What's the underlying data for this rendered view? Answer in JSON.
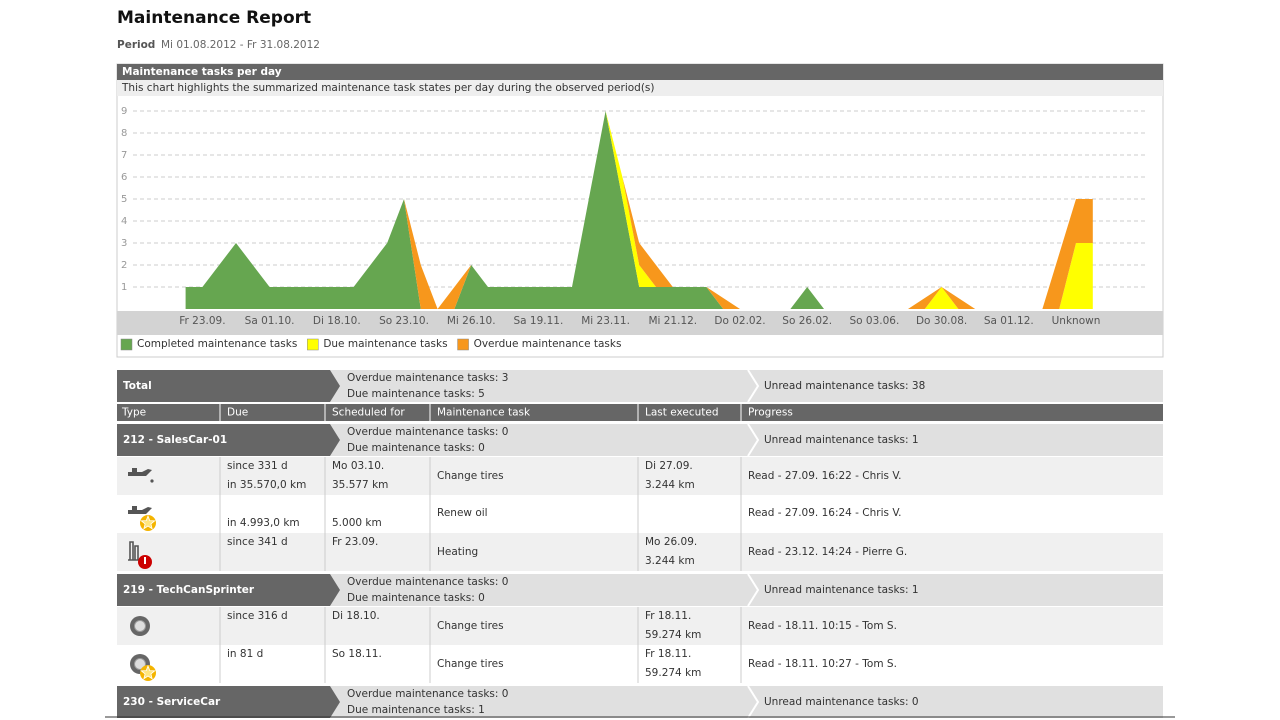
{
  "header": {
    "title": "Maintenance Report",
    "period_label": "Period",
    "period": "Mi 01.08.2012 - Fr 31.08.2012"
  },
  "chart_data": {
    "type": "area",
    "stacked": true,
    "title": "Maintenance tasks per day",
    "subtitle": "This chart highlights the summarized maintenance task states per day during the observed period(s)",
    "categories": [
      null,
      "Fr 23.09.",
      null,
      null,
      null,
      "Sa 01.10.",
      null,
      null,
      null,
      "Di 18.10.",
      null,
      null,
      null,
      "So 23.10.",
      null,
      null,
      null,
      "Mi 26.10.",
      null,
      null,
      null,
      "Sa 19.11.",
      null,
      null,
      null,
      "Mi 23.11.",
      null,
      null,
      null,
      "Mi 21.12.",
      null,
      null,
      null,
      "Do 02.02.",
      null,
      null,
      null,
      "So 26.02.",
      null,
      null,
      null,
      "So 03.06.",
      null,
      null,
      null,
      "Do 30.08.",
      null,
      null,
      null,
      "Sa 01.12.",
      null,
      null,
      null,
      "Unknown",
      null
    ],
    "series": [
      {
        "name": "Completed maintenance tasks",
        "color": "#66a650",
        "values": [
          1,
          1,
          2,
          3,
          2,
          1,
          1,
          1,
          1,
          1,
          1,
          2,
          3,
          5,
          0,
          0,
          0,
          2,
          1,
          1,
          1,
          1,
          1,
          1,
          5,
          9,
          5,
          1,
          1,
          1,
          1,
          1,
          0,
          0,
          0,
          0,
          0,
          1,
          0,
          0,
          0,
          0,
          0,
          0,
          0,
          0,
          0,
          0,
          0,
          0,
          0,
          0,
          0,
          0,
          0
        ]
      },
      {
        "name": "Due maintenance tasks",
        "color": "#ffff00",
        "values": [
          0,
          0,
          0,
          0,
          0,
          0,
          0,
          0,
          0,
          0,
          0,
          0,
          0,
          0,
          0,
          0,
          0,
          0,
          0,
          0,
          0,
          0,
          0,
          0,
          0,
          0,
          1,
          1,
          0,
          0,
          0,
          0,
          0,
          0,
          0,
          0,
          0,
          0,
          0,
          0,
          0,
          0,
          0,
          0,
          0,
          1,
          0,
          0,
          0,
          0,
          0,
          0,
          0,
          3,
          3
        ]
      },
      {
        "name": "Overdue maintenance tasks",
        "color": "#f7971c",
        "values": [
          0,
          0,
          0,
          0,
          0,
          0,
          0,
          0,
          0,
          0,
          0,
          0,
          0,
          0,
          2,
          0,
          1,
          0,
          0,
          0,
          0,
          0,
          0,
          0,
          0,
          0,
          0,
          1,
          1,
          0,
          0,
          0,
          0.5,
          0,
          0,
          0,
          0,
          0,
          0,
          0,
          0,
          0,
          0,
          0,
          0.5,
          0,
          0.5,
          0,
          0,
          0,
          0,
          0,
          2.5,
          2,
          2
        ]
      }
    ],
    "ylim": [
      0,
      9.6
    ],
    "yticks": [
      1,
      2,
      3,
      4,
      5,
      6,
      7,
      8,
      9
    ],
    "grid": true,
    "legend": "bottom"
  },
  "table": {
    "total": {
      "label": "Total",
      "overdue": "Overdue maintenance tasks: 3",
      "due": "Due maintenance tasks: 5",
      "unread": "Unread maintenance tasks: 38"
    },
    "columns": [
      "Type",
      "Due",
      "Scheduled for",
      "Maintenance task",
      "Last executed",
      "Progress"
    ],
    "groups": [
      {
        "label": "212 - SalesCar-01",
        "overdue": "Overdue maintenance tasks: 0",
        "due": "Due maintenance tasks: 0",
        "unread": "Unread maintenance tasks: 1",
        "tasks": [
          {
            "due": [
              "since 331 d",
              "in 35.570,0 km"
            ],
            "scheduled": [
              "Mo 03.10.",
              "35.577 km"
            ],
            "task": "Change tires",
            "last": [
              "Di 27.09.",
              "3.244 km"
            ],
            "progress": "Read - 27.09. 16:22 - Chris V."
          },
          {
            "due": [
              "in 4.993,0 km"
            ],
            "scheduled": [
              "5.000 km"
            ],
            "task": "Renew oil",
            "last": [],
            "progress": "Read - 27.09. 16:24 - Chris V."
          },
          {
            "due": [
              "since 341 d"
            ],
            "scheduled": [
              "Fr 23.09."
            ],
            "task": "Heating",
            "last": [
              "Mo 26.09.",
              "3.244 km"
            ],
            "progress": "Read - 23.12. 14:24 - Pierre G."
          }
        ]
      },
      {
        "label": "219 - TechCanSprinter",
        "overdue": "Overdue maintenance tasks: 0",
        "due": "Due maintenance tasks: 0",
        "unread": "Unread maintenance tasks: 1",
        "tasks": [
          {
            "due": [
              "since 316 d"
            ],
            "scheduled": [
              "Di 18.10."
            ],
            "task": "Change tires",
            "last": [
              "Fr 18.11.",
              "59.274 km"
            ],
            "progress": "Read - 18.11. 10:15 - Tom S."
          },
          {
            "due": [
              "in 81 d"
            ],
            "scheduled": [
              "So 18.11."
            ],
            "task": "Change tires",
            "last": [
              "Fr 18.11.",
              "59.274 km"
            ],
            "progress": "Read - 18.11. 10:27 - Tom S."
          }
        ]
      },
      {
        "label": "230 - ServiceCar",
        "overdue": "Overdue maintenance tasks: 0",
        "due": "Due maintenance tasks: 1",
        "unread": "Unread maintenance tasks: 0",
        "tasks": []
      }
    ]
  }
}
